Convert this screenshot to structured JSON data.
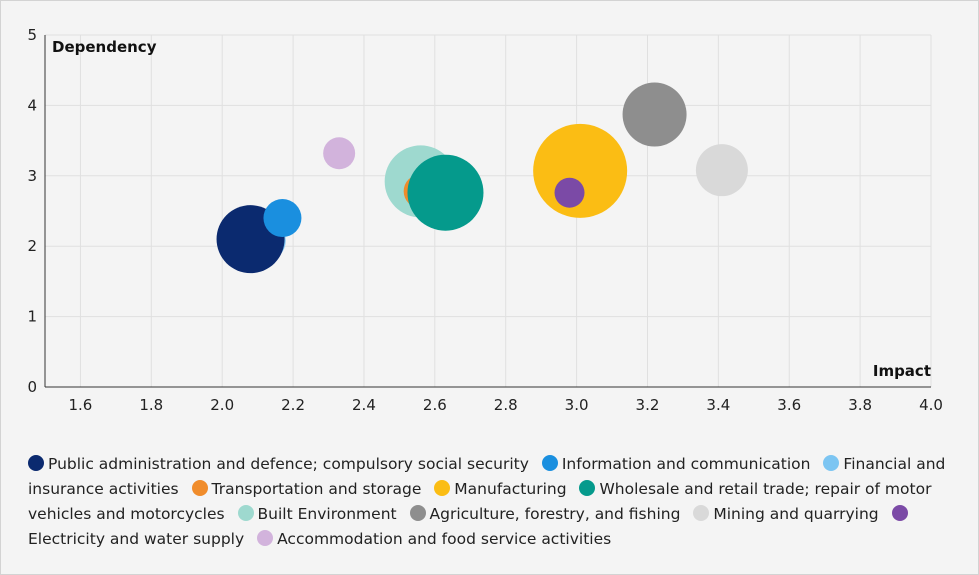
{
  "chart_data": {
    "type": "bubble",
    "xlabel": "Impact",
    "ylabel": "Dependency",
    "xlim": [
      1.5,
      4.0
    ],
    "ylim": [
      0,
      5
    ],
    "xticks": [
      "1.6",
      "1.8",
      "2.0",
      "2.2",
      "2.4",
      "2.6",
      "2.8",
      "3.0",
      "3.2",
      "3.4",
      "3.6",
      "3.8",
      "4.0"
    ],
    "yticks": [
      "0",
      "1",
      "2",
      "3",
      "4",
      "5"
    ],
    "grid": true,
    "legend_position": "bottom",
    "series": [
      {
        "name": "Public administration and defence; compulsory social security",
        "color": "#0b2a6f",
        "x": 2.08,
        "y": 2.1,
        "size": 34
      },
      {
        "name": "Information and communication",
        "color": "#1a8fdf",
        "x": 2.17,
        "y": 2.4,
        "size": 19
      },
      {
        "name": "Financial and insurance activities",
        "color": "#7cc5f2",
        "x": 2.12,
        "y": 2.08,
        "size": 21
      },
      {
        "name": "Transportation and storage",
        "color": "#f08c2b",
        "x": 2.56,
        "y": 2.78,
        "size": 17
      },
      {
        "name": "Manufacturing",
        "color": "#fbbd14",
        "x": 3.01,
        "y": 3.07,
        "size": 47
      },
      {
        "name": "Wholesale and retail trade; repair of motor vehicles and motorcycles",
        "color": "#059a8c",
        "x": 2.63,
        "y": 2.76,
        "size": 38
      },
      {
        "name": "Built Environment",
        "color": "#9ed9cf",
        "x": 2.56,
        "y": 2.92,
        "size": 36
      },
      {
        "name": "Agriculture, forestry, and fishing",
        "color": "#8e8e8e",
        "x": 3.22,
        "y": 3.87,
        "size": 32
      },
      {
        "name": "Mining and quarrying",
        "color": "#d9d9d9",
        "x": 3.41,
        "y": 3.08,
        "size": 26
      },
      {
        "name": "Electricity and water supply",
        "color": "#7b4aa6",
        "x": 2.98,
        "y": 2.76,
        "size": 15
      },
      {
        "name": "Accommodation and food service activities",
        "color": "#d2b3dc",
        "x": 2.33,
        "y": 3.32,
        "size": 16
      }
    ]
  },
  "legend": [
    "Public administration and defence; compulsory social security",
    "Information and communication",
    "Financial and insurance activities",
    "Transportation and storage",
    "Manufacturing",
    "Wholesale and retail trade; repair of motor vehicles and motorcycles",
    "Built Environment",
    "Agriculture, forestry, and fishing",
    "Mining and quarrying",
    "Electricity and water supply",
    "Accommodation and food service activities"
  ]
}
